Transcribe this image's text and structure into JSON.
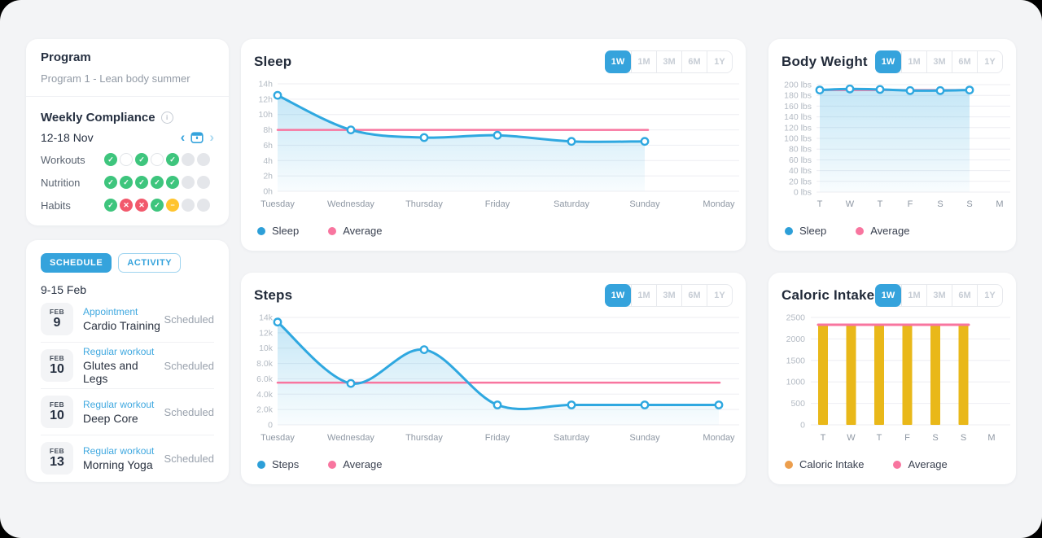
{
  "program_card": {
    "title": "Program",
    "subtitle": "Program 1 - Lean body summer",
    "weekly_compliance": {
      "title": "Weekly Compliance",
      "date_range": "12-18 Nov",
      "rows": [
        {
          "label": "Workouts",
          "statuses": [
            "done",
            "empty",
            "done",
            "empty",
            "done",
            "none",
            "none"
          ]
        },
        {
          "label": "Nutrition",
          "statuses": [
            "done",
            "done",
            "done",
            "done",
            "done",
            "none",
            "none"
          ]
        },
        {
          "label": "Habits",
          "statuses": [
            "done",
            "fail",
            "fail",
            "done",
            "skip",
            "none",
            "none"
          ]
        }
      ]
    }
  },
  "schedule_card": {
    "tabs": [
      {
        "label": "SCHEDULE",
        "active": true
      },
      {
        "label": "ACTIVITY",
        "active": false
      }
    ],
    "date_range": "9-15 Feb",
    "events": [
      {
        "month": "FEB",
        "day": "9",
        "type": "Appointment",
        "name": "Cardio Training",
        "status": "Scheduled"
      },
      {
        "month": "FEB",
        "day": "10",
        "type": "Regular workout",
        "name": "Glutes and Legs",
        "status": "Scheduled"
      },
      {
        "month": "FEB",
        "day": "10",
        "type": "Regular workout",
        "name": "Deep Core",
        "status": "Scheduled"
      },
      {
        "month": "FEB",
        "day": "13",
        "type": "Regular workout",
        "name": "Morning Yoga",
        "status": "Scheduled"
      }
    ]
  },
  "time_ranges": [
    "1W",
    "1M",
    "3M",
    "6M",
    "1Y"
  ],
  "colors": {
    "accent_blue": "#35A3DC",
    "line_blue": "#2FA8E0",
    "pink": "#F8759F",
    "bar_yellow": "#E9B819",
    "legend_orange": "#EC9E4D",
    "green": "#3EC57D",
    "red": "#F2596C",
    "yellow": "#FFC42E",
    "gridline": "#EDEEF2"
  },
  "chart_data": [
    {
      "id": "sleep",
      "type": "line",
      "title": "Sleep",
      "active_range": "1W",
      "x_labels": [
        "Tuesday",
        "Wednesday",
        "Thursday",
        "Friday",
        "Saturday",
        "Sunday",
        "Monday"
      ],
      "y_tick_labels": [
        "14h",
        "12h",
        "10h",
        "8h",
        "6h",
        "4h",
        "2h",
        "0h"
      ],
      "y_max": 14,
      "ylim": [
        0,
        14
      ],
      "values": [
        12.5,
        8,
        7,
        7.3,
        6.5,
        6.5
      ],
      "average": 8,
      "legend": [
        {
          "label": "Sleep",
          "color": "#2D9FD8"
        },
        {
          "label": "Average",
          "color": "#F8759F"
        }
      ]
    },
    {
      "id": "body_weight",
      "type": "line",
      "title": "Body Weight",
      "active_range": "1W",
      "x_labels": [
        "T",
        "W",
        "T",
        "F",
        "S",
        "S",
        "M"
      ],
      "y_tick_labels": [
        "200 lbs",
        "180 lbs",
        "160 lbs",
        "140 lbs",
        "120 lbs",
        "100 lbs",
        "80 lbs",
        "60 lbs",
        "40 lbs",
        "20 lbs",
        "0 lbs"
      ],
      "y_max": 200,
      "ylim": [
        0,
        200
      ],
      "values": [
        190,
        192,
        191,
        189,
        189,
        190
      ],
      "average": 190,
      "legend": [
        {
          "label": "Sleep",
          "color": "#2D9FD8"
        },
        {
          "label": "Average",
          "color": "#F8759F"
        }
      ]
    },
    {
      "id": "steps",
      "type": "line",
      "title": "Steps",
      "active_range": "1W",
      "x_labels": [
        "Tuesday",
        "Wednesday",
        "Thursday",
        "Friday",
        "Saturday",
        "Sunday",
        "Monday"
      ],
      "y_tick_labels": [
        "14k",
        "12k",
        "10k",
        "8.0k",
        "6.0k",
        "4.0k",
        "2.0k",
        "0"
      ],
      "y_max": 14000,
      "ylim": [
        0,
        14000
      ],
      "values": [
        13400,
        5400,
        9800,
        2600,
        2600,
        2600,
        2600
      ],
      "average": 5500,
      "legend": [
        {
          "label": "Steps",
          "color": "#2D9FD8"
        },
        {
          "label": "Average",
          "color": "#F8759F"
        }
      ]
    },
    {
      "id": "caloric_intake",
      "type": "bar",
      "title": "Caloric Intake",
      "active_range": "1W",
      "x_labels": [
        "T",
        "W",
        "T",
        "F",
        "S",
        "S",
        "M"
      ],
      "y_tick_labels": [
        "2500",
        "2000",
        "1500",
        "1000",
        "500",
        "0"
      ],
      "y_max": 2500,
      "ylim": [
        0,
        2500
      ],
      "values": [
        2320,
        2320,
        2320,
        2320,
        2320,
        2320
      ],
      "average": 2330,
      "legend": [
        {
          "label": "Caloric Intake",
          "color": "#EC9E4D"
        },
        {
          "label": "Average",
          "color": "#F8759F"
        }
      ]
    }
  ]
}
